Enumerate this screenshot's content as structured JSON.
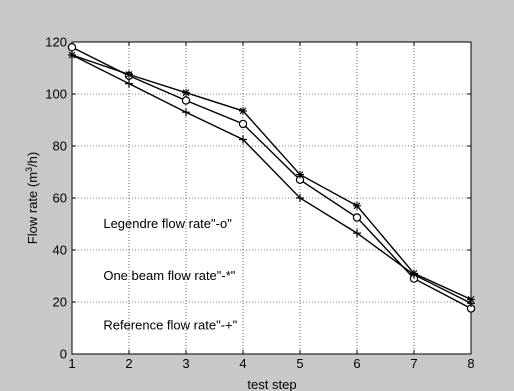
{
  "chart_data": {
    "type": "line",
    "xlabel": "test step",
    "ylabel_main": "Flow rate (m",
    "ylabel_sup": "3",
    "ylabel_end": "/h)",
    "xlim": [
      1,
      8
    ],
    "ylim": [
      0,
      120
    ],
    "xticks": [
      1,
      2,
      3,
      4,
      5,
      6,
      7,
      8
    ],
    "yticks": [
      0,
      20,
      40,
      60,
      80,
      100,
      120
    ],
    "grid": true,
    "x": [
      1,
      2,
      3,
      4,
      5,
      6,
      7,
      8
    ],
    "series": [
      {
        "name": "Legendre flow rate",
        "marker": "o",
        "values": [
          118,
          107,
          97.5,
          88.5,
          67,
          52.5,
          29,
          17.5
        ]
      },
      {
        "name": "One beam flow rate",
        "marker": "*",
        "values": [
          115,
          107.5,
          100.5,
          93.5,
          69,
          57,
          31,
          21
        ]
      },
      {
        "name": "Reference flow rate",
        "marker": "+",
        "values": [
          115,
          104,
          93,
          82.5,
          60,
          46.5,
          30.5,
          19.5
        ]
      }
    ],
    "annotations": [
      {
        "text": "Legendre flow rate\"-o\"",
        "x": 1.55,
        "y": 48.5
      },
      {
        "text": "One beam flow rate\"-*\"",
        "x": 1.55,
        "y": 28.5
      },
      {
        "text": "Reference  flow rate\"-+\"",
        "x": 1.55,
        "y": 9.5
      }
    ]
  }
}
